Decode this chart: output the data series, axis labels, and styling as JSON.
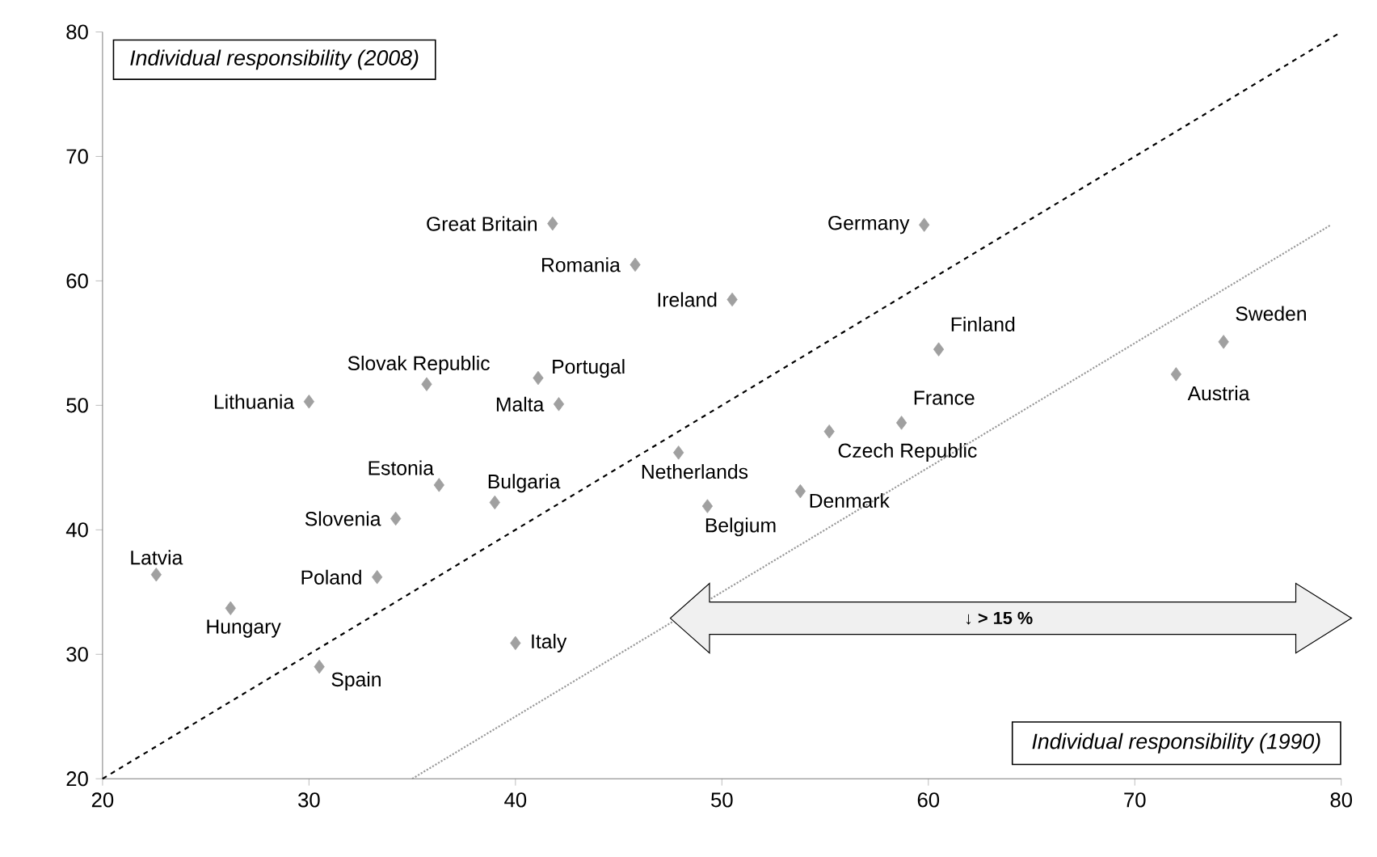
{
  "chart_data": {
    "type": "scatter",
    "xlabel": "Individual responsibility (1990)",
    "ylabel": "Individual responsibility (2008)",
    "xlim": [
      20,
      80
    ],
    "ylim": [
      20,
      80
    ],
    "xticks": [
      20,
      30,
      40,
      50,
      60,
      70,
      80
    ],
    "yticks": [
      20,
      30,
      40,
      50,
      60,
      70,
      80
    ],
    "series": [
      {
        "color": "#a0a0a0",
        "marker": "diamond",
        "x": [
          41.8,
          59.8,
          45.8,
          50.5,
          60.5,
          74.3,
          72.0,
          35.7,
          41.1,
          42.1,
          30.0,
          58.7,
          55.2,
          47.9,
          53.8,
          49.3,
          36.3,
          39.0,
          34.2,
          22.6,
          33.3,
          26.2,
          40.0,
          30.5
        ],
        "values": [
          64.6,
          64.5,
          61.3,
          58.5,
          54.5,
          55.1,
          52.5,
          51.7,
          52.2,
          50.1,
          50.3,
          48.6,
          47.9,
          46.2,
          43.1,
          41.9,
          43.6,
          42.2,
          40.9,
          36.4,
          36.2,
          33.7,
          30.9,
          29.0
        ]
      },
      {
        "type": "line",
        "color": "#000000",
        "line_style": "dashed",
        "x": [
          20,
          80
        ],
        "values": [
          20,
          80
        ]
      },
      {
        "type": "line",
        "color": "#999999",
        "line_style": "dotted",
        "x": [
          35,
          79.5
        ],
        "values": [
          20,
          64.5
        ]
      }
    ],
    "annotations": [
      {
        "text": "Great Britain",
        "x": 41.8,
        "y": 64.6
      },
      {
        "text": "Germany",
        "x": 59.8,
        "y": 64.5
      },
      {
        "text": "Romania",
        "x": 45.8,
        "y": 61.3
      },
      {
        "text": "Ireland",
        "x": 50.5,
        "y": 58.5
      },
      {
        "text": "Finland",
        "x": 60.5,
        "y": 54.5
      },
      {
        "text": "Sweden",
        "x": 74.3,
        "y": 55.1
      },
      {
        "text": "Austria",
        "x": 72.0,
        "y": 52.5
      },
      {
        "text": "Slovak Republic",
        "x": 35.7,
        "y": 51.7
      },
      {
        "text": "Portugal",
        "x": 41.1,
        "y": 52.2
      },
      {
        "text": "Malta",
        "x": 42.1,
        "y": 50.1
      },
      {
        "text": "Lithuania",
        "x": 30.0,
        "y": 50.3
      },
      {
        "text": "France",
        "x": 58.7,
        "y": 48.6
      },
      {
        "text": "Czech Republic",
        "x": 55.2,
        "y": 47.9
      },
      {
        "text": "Netherlands",
        "x": 47.9,
        "y": 46.2
      },
      {
        "text": "Denmark",
        "x": 53.8,
        "y": 43.1
      },
      {
        "text": "Belgium",
        "x": 49.3,
        "y": 41.9
      },
      {
        "text": "Estonia",
        "x": 36.3,
        "y": 43.6
      },
      {
        "text": "Bulgaria",
        "x": 39.0,
        "y": 42.2
      },
      {
        "text": "Slovenia",
        "x": 34.2,
        "y": 40.9
      },
      {
        "text": "Latvia",
        "x": 22.6,
        "y": 36.4
      },
      {
        "text": "Poland",
        "x": 33.3,
        "y": 36.2
      },
      {
        "text": "Hungary",
        "x": 26.2,
        "y": 33.7
      },
      {
        "text": "Italy",
        "x": 40.0,
        "y": 30.9
      },
      {
        "text": "Spain",
        "x": 30.5,
        "y": 29.0
      },
      "↓ > 15 %"
    ]
  }
}
